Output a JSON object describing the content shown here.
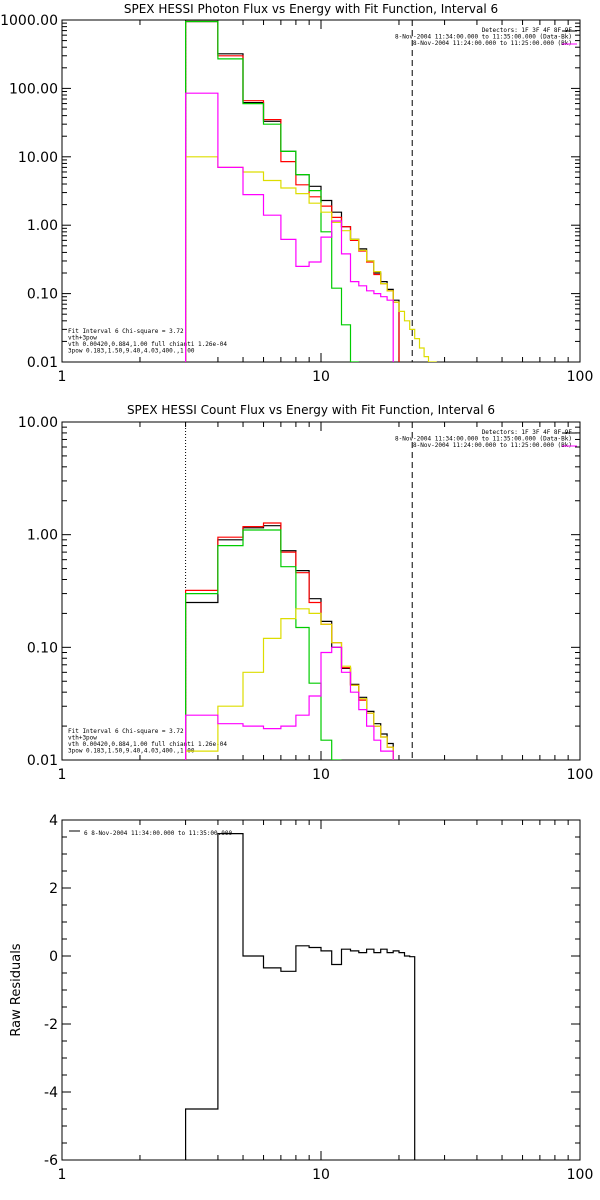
{
  "chart_data": [
    {
      "type": "line",
      "title": "SPEX HESSI Photon Flux vs Energy with Fit Function, Interval 6",
      "xscale": "log",
      "yscale": "log",
      "xlim": [
        1,
        100
      ],
      "ylim": [
        0.01,
        1000
      ],
      "x_ticks": [
        "1",
        "10",
        "100"
      ],
      "y_ticks": [
        "0.01",
        "0.10",
        "1.00",
        "10.00",
        "100.00",
        "1000.00"
      ],
      "info": [
        "Detectors: 1F 3F 4F 8F 9F",
        "8-Nov-2004 11:34:00.000 to 11:35:00.000 (Data-Bk)",
        "8-Nov-2004 11:24:00.000 to 11:25:00.000 (Bk)"
      ],
      "legend": [
        "Fit Interval 6   Chi-square = 3.72",
        "vth+3pow",
        "vth 0.00420,0.884,1.00   full chianti 1.26e-04",
        "3pow 0.183,1.50,9.40,4.03,400.,1.00"
      ],
      "vlines": [
        3,
        22.5
      ],
      "bin_edges": [
        3,
        3.5,
        4,
        4.5,
        5,
        5.5,
        6,
        6.5,
        7,
        7.5,
        8,
        8.5,
        9,
        9.5,
        10,
        10.5,
        11,
        12,
        13,
        14,
        15,
        16,
        17,
        18,
        19,
        20,
        21,
        22,
        23,
        24,
        25,
        26,
        28,
        30,
        32,
        34,
        36,
        38
      ],
      "series": [
        {
          "name": "Data-Bk",
          "color": "#000000",
          "values": [
            950,
            950,
            320,
            320,
            62,
            62,
            33,
            33,
            12,
            12,
            5.5,
            5.5,
            3.7,
            3.7,
            2.3,
            2.3,
            1.55,
            0.95,
            0.62,
            0.45,
            0.3,
            0.2,
            0.15,
            0.115,
            0.08
          ]
        },
        {
          "name": "vth+3pow",
          "color": "#ff0000",
          "values": [
            950,
            950,
            300,
            300,
            66,
            66,
            35,
            35,
            8.5,
            8.5,
            3.9,
            3.9,
            2.6,
            2.6,
            1.9,
            1.9,
            1.3,
            0.95,
            0.6,
            0.42,
            0.29,
            0.19,
            0.14,
            0.11,
            0.075
          ]
        },
        {
          "name": "vth",
          "color": "#00cc00",
          "values": [
            950,
            950,
            270,
            270,
            60,
            60,
            30,
            30,
            12,
            12,
            5.5,
            5.5,
            3.2,
            3.2,
            0.8,
            0.8,
            0.12,
            0.035,
            0.01
          ]
        },
        {
          "name": "3pow",
          "color": "#dddd00",
          "values": [
            10,
            10,
            7,
            7,
            6,
            6,
            4.5,
            4.5,
            3.5,
            3.5,
            2.9,
            2.9,
            2.1,
            2.1,
            1.55,
            1.55,
            1.1,
            0.83,
            0.62,
            0.43,
            0.3,
            0.21,
            0.14,
            0.11,
            0.075,
            0.055,
            0.04,
            0.03,
            0.022,
            0.016,
            0.012,
            0.01
          ]
        },
        {
          "name": "pow",
          "color": "#ff00ff",
          "values": [
            85,
            85,
            7,
            7,
            2.8,
            2.8,
            1.4,
            1.4,
            0.62,
            0.62,
            0.25,
            0.25,
            0.29,
            0.29,
            0.67,
            0.67,
            1.15,
            0.38,
            0.15,
            0.13,
            0.11,
            0.1,
            0.09,
            0.08
          ]
        }
      ]
    },
    {
      "type": "line",
      "title": "SPEX HESSI Count Flux vs Energy with Fit Function, Interval 6",
      "xscale": "log",
      "yscale": "log",
      "xlim": [
        1,
        100
      ],
      "ylim": [
        0.01,
        10
      ],
      "x_ticks": [
        "1",
        "10",
        "100"
      ],
      "y_ticks": [
        "0.01",
        "0.10",
        "1.00",
        "10.00"
      ],
      "info": [
        "Detectors: 1F 3F 4F 8F 9F",
        "8-Nov-2004 11:34:00.000 to 11:35:00.000 (Data-Bk)",
        "8-Nov-2004 11:24:00.000 to 11:25:00.000 (Bk)"
      ],
      "legend": [
        "Fit Interval 6   Chi-square = 3.72",
        "vth+3pow",
        "vth 0.00420,0.884,1.00   full chianti 1.26e-04",
        "3pow 0.183,1.50,9.40,4.03,400.,1.00"
      ],
      "vlines": [
        3,
        22.5
      ],
      "bin_edges": [
        3,
        3.5,
        4,
        4.5,
        5,
        5.5,
        6,
        6.5,
        7,
        7.5,
        8,
        8.5,
        9,
        9.5,
        10,
        10.5,
        11,
        12,
        13,
        14,
        15,
        16,
        17,
        18,
        19,
        20,
        21,
        22,
        23
      ],
      "series": [
        {
          "name": "Data-Bk",
          "color": "#000000",
          "values": [
            0.25,
            0.25,
            0.9,
            0.9,
            1.15,
            1.15,
            1.2,
            1.2,
            0.72,
            0.72,
            0.48,
            0.48,
            0.27,
            0.27,
            0.17,
            0.17,
            0.1,
            0.065,
            0.047,
            0.036,
            0.027,
            0.021,
            0.017,
            0.014
          ]
        },
        {
          "name": "vth+3pow",
          "color": "#ff0000",
          "values": [
            0.32,
            0.32,
            0.95,
            0.95,
            1.18,
            1.18,
            1.27,
            1.27,
            0.7,
            0.7,
            0.46,
            0.46,
            0.25,
            0.25,
            0.16,
            0.16,
            0.11,
            0.066,
            0.046,
            0.034,
            0.026,
            0.02,
            0.016,
            0.013
          ]
        },
        {
          "name": "vth",
          "color": "#00cc00",
          "values": [
            0.3,
            0.3,
            0.8,
            0.8,
            1.1,
            1.1,
            1.1,
            1.1,
            0.52,
            0.52,
            0.15,
            0.15,
            0.048,
            0.048,
            0.015,
            0.015,
            0.01
          ]
        },
        {
          "name": "3pow",
          "color": "#dddd00",
          "values": [
            0.012,
            0.012,
            0.03,
            0.03,
            0.06,
            0.06,
            0.12,
            0.12,
            0.18,
            0.18,
            0.22,
            0.22,
            0.2,
            0.2,
            0.16,
            0.16,
            0.11,
            0.068,
            0.046,
            0.035,
            0.026,
            0.02,
            0.016,
            0.013
          ]
        },
        {
          "name": "pow",
          "color": "#ff00ff",
          "values": [
            0.025,
            0.025,
            0.021,
            0.021,
            0.02,
            0.02,
            0.019,
            0.019,
            0.02,
            0.02,
            0.025,
            0.025,
            0.037,
            0.037,
            0.09,
            0.09,
            0.1,
            0.06,
            0.04,
            0.028,
            0.02,
            0.015,
            0.012,
            0.012
          ]
        }
      ]
    },
    {
      "type": "line",
      "title": "",
      "xscale": "log",
      "yscale": "linear",
      "xlim": [
        1,
        100
      ],
      "ylim": [
        -6,
        4
      ],
      "x_ticks": [
        "1",
        "10",
        "100"
      ],
      "y_ticks": [
        "-6",
        "-4",
        "-2",
        "0",
        "2",
        "4"
      ],
      "ylabel": "Raw Residuals",
      "legend_text": "6  8-Nov-2004 11:34:00.000 to 11:35:00.000",
      "bin_edges": [
        3,
        3.5,
        4,
        4.5,
        5,
        5.5,
        6,
        6.5,
        7,
        7.5,
        8,
        8.5,
        9,
        9.5,
        10,
        10.5,
        11,
        12,
        13,
        14,
        15,
        16,
        17,
        18,
        19,
        20,
        21,
        22,
        23
      ],
      "series": [
        {
          "name": "residuals",
          "color": "#000000",
          "values": [
            -4.5,
            -4.5,
            3.6,
            3.6,
            0,
            0,
            -0.35,
            -0.35,
            -0.45,
            -0.45,
            0.3,
            0.3,
            0.25,
            0.25,
            0.15,
            0.15,
            -0.25,
            0.2,
            0.15,
            0.1,
            0.2,
            0.1,
            0.2,
            0.1,
            0.15,
            0.1,
            0.0,
            -0.02
          ]
        }
      ]
    }
  ]
}
